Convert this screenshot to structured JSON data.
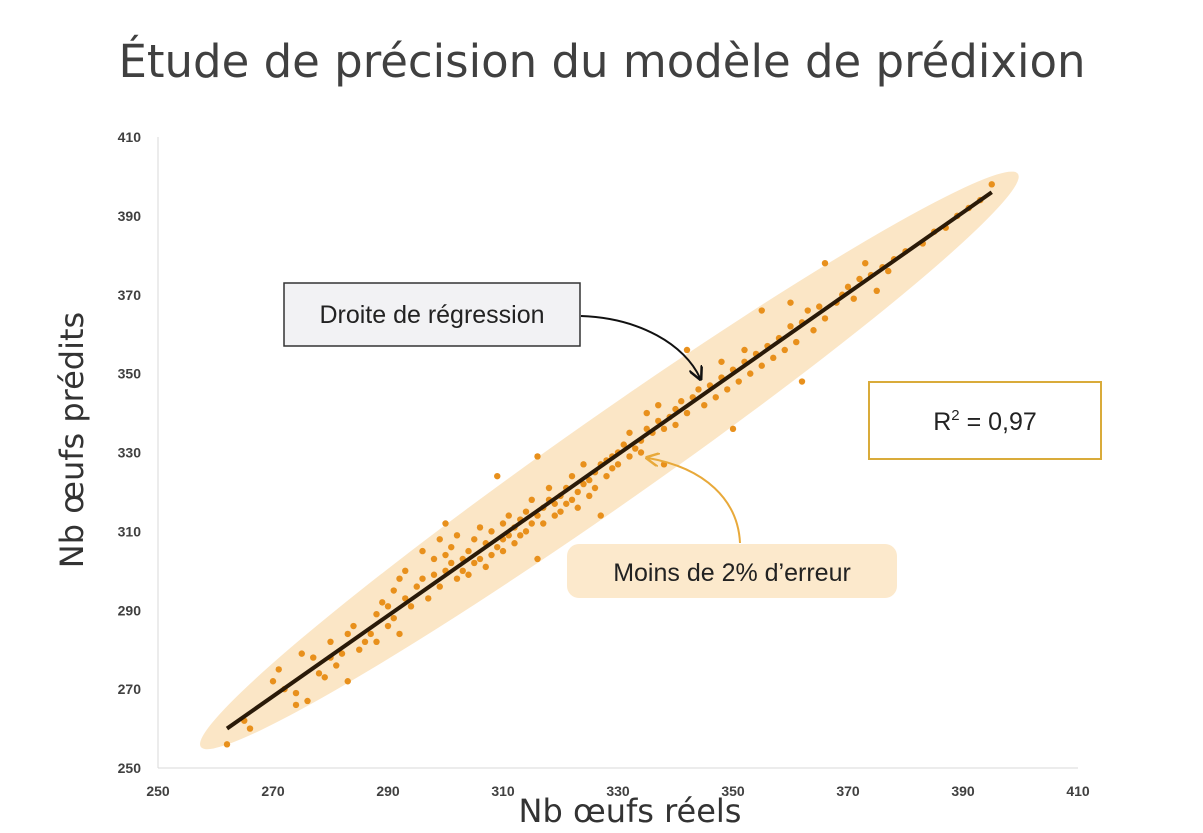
{
  "colors": {
    "point": "#e8901c",
    "band": "#fbe6c6",
    "regression_line": "#2a1a08",
    "callout_arrow": "#e8a93a",
    "r2_border": "#d9ab3a",
    "axis_text": "#404040"
  },
  "chart_data": {
    "type": "scatter",
    "title": "Étude de précision du modèle de prédixion",
    "xlabel": "Nb œufs réels",
    "ylabel": "Nb œufs prédits",
    "xlim": [
      250,
      410
    ],
    "ylim": [
      250,
      410
    ],
    "xticks": [
      250,
      270,
      290,
      310,
      330,
      350,
      370,
      390,
      410
    ],
    "yticks": [
      250,
      270,
      290,
      310,
      330,
      350,
      370,
      390,
      410
    ],
    "grid": false,
    "regression_line": {
      "x": [
        262,
        395
      ],
      "y": [
        260,
        396
      ]
    },
    "annotations": {
      "regression": "Droite de régression",
      "r2_label": "R",
      "r2_sup": "2",
      "r2_value": " = 0,97",
      "error": "Moins de 2% d’erreur"
    },
    "points": [
      [
        262,
        256
      ],
      [
        265,
        262
      ],
      [
        266,
        260
      ],
      [
        270,
        272
      ],
      [
        271,
        275
      ],
      [
        272,
        270
      ],
      [
        274,
        266
      ],
      [
        274,
        269
      ],
      [
        275,
        279
      ],
      [
        276,
        267
      ],
      [
        277,
        278
      ],
      [
        278,
        274
      ],
      [
        279,
        273
      ],
      [
        280,
        278
      ],
      [
        280,
        282
      ],
      [
        281,
        276
      ],
      [
        282,
        279
      ],
      [
        283,
        284
      ],
      [
        283,
        272
      ],
      [
        284,
        286
      ],
      [
        285,
        280
      ],
      [
        286,
        282
      ],
      [
        287,
        284
      ],
      [
        288,
        289
      ],
      [
        288,
        282
      ],
      [
        289,
        292
      ],
      [
        290,
        286
      ],
      [
        290,
        291
      ],
      [
        291,
        295
      ],
      [
        291,
        288
      ],
      [
        292,
        298
      ],
      [
        292,
        284
      ],
      [
        293,
        300
      ],
      [
        293,
        293
      ],
      [
        294,
        291
      ],
      [
        295,
        296
      ],
      [
        296,
        298
      ],
      [
        296,
        305
      ],
      [
        297,
        293
      ],
      [
        298,
        299
      ],
      [
        298,
        303
      ],
      [
        299,
        296
      ],
      [
        299,
        308
      ],
      [
        300,
        300
      ],
      [
        300,
        312
      ],
      [
        300,
        304
      ],
      [
        301,
        302
      ],
      [
        301,
        306
      ],
      [
        302,
        298
      ],
      [
        302,
        309
      ],
      [
        303,
        303
      ],
      [
        303,
        300
      ],
      [
        304,
        305
      ],
      [
        304,
        299
      ],
      [
        305,
        302
      ],
      [
        305,
        308
      ],
      [
        306,
        303
      ],
      [
        306,
        311
      ],
      [
        307,
        307
      ],
      [
        307,
        301
      ],
      [
        308,
        304
      ],
      [
        308,
        310
      ],
      [
        309,
        306
      ],
      [
        309,
        324
      ],
      [
        310,
        308
      ],
      [
        310,
        312
      ],
      [
        310,
        305
      ],
      [
        311,
        309
      ],
      [
        311,
        314
      ],
      [
        312,
        307
      ],
      [
        312,
        311
      ],
      [
        313,
        313
      ],
      [
        313,
        309
      ],
      [
        314,
        315
      ],
      [
        314,
        310
      ],
      [
        315,
        312
      ],
      [
        315,
        318
      ],
      [
        316,
        314
      ],
      [
        316,
        303
      ],
      [
        316,
        329
      ],
      [
        317,
        316
      ],
      [
        317,
        312
      ],
      [
        318,
        318
      ],
      [
        318,
        321
      ],
      [
        319,
        314
      ],
      [
        319,
        317
      ],
      [
        320,
        319
      ],
      [
        320,
        315
      ],
      [
        321,
        321
      ],
      [
        321,
        317
      ],
      [
        322,
        318
      ],
      [
        322,
        324
      ],
      [
        323,
        320
      ],
      [
        323,
        316
      ],
      [
        324,
        322
      ],
      [
        324,
        327
      ],
      [
        325,
        323
      ],
      [
        325,
        319
      ],
      [
        326,
        325
      ],
      [
        326,
        321
      ],
      [
        327,
        327
      ],
      [
        327,
        314
      ],
      [
        328,
        328
      ],
      [
        328,
        324
      ],
      [
        329,
        329
      ],
      [
        329,
        326
      ],
      [
        330,
        330
      ],
      [
        330,
        327
      ],
      [
        331,
        332
      ],
      [
        332,
        329
      ],
      [
        332,
        335
      ],
      [
        333,
        331
      ],
      [
        334,
        333
      ],
      [
        334,
        330
      ],
      [
        335,
        336
      ],
      [
        335,
        340
      ],
      [
        336,
        335
      ],
      [
        337,
        338
      ],
      [
        337,
        342
      ],
      [
        338,
        336
      ],
      [
        338,
        327
      ],
      [
        339,
        339
      ],
      [
        340,
        341
      ],
      [
        340,
        337
      ],
      [
        341,
        343
      ],
      [
        342,
        356
      ],
      [
        342,
        340
      ],
      [
        343,
        344
      ],
      [
        344,
        346
      ],
      [
        345,
        342
      ],
      [
        346,
        347
      ],
      [
        347,
        344
      ],
      [
        348,
        349
      ],
      [
        348,
        353
      ],
      [
        349,
        346
      ],
      [
        350,
        351
      ],
      [
        350,
        336
      ],
      [
        351,
        348
      ],
      [
        352,
        353
      ],
      [
        352,
        356
      ],
      [
        353,
        350
      ],
      [
        354,
        355
      ],
      [
        355,
        352
      ],
      [
        355,
        366
      ],
      [
        356,
        357
      ],
      [
        357,
        354
      ],
      [
        358,
        359
      ],
      [
        359,
        356
      ],
      [
        360,
        362
      ],
      [
        360,
        368
      ],
      [
        361,
        358
      ],
      [
        362,
        348
      ],
      [
        362,
        363
      ],
      [
        363,
        366
      ],
      [
        364,
        361
      ],
      [
        365,
        367
      ],
      [
        366,
        378
      ],
      [
        366,
        364
      ],
      [
        368,
        368
      ],
      [
        369,
        370
      ],
      [
        370,
        372
      ],
      [
        371,
        369
      ],
      [
        372,
        374
      ],
      [
        373,
        378
      ],
      [
        374,
        375
      ],
      [
        375,
        371
      ],
      [
        376,
        377
      ],
      [
        377,
        376
      ],
      [
        378,
        379
      ],
      [
        380,
        381
      ],
      [
        383,
        383
      ],
      [
        385,
        386
      ],
      [
        387,
        387
      ],
      [
        389,
        390
      ],
      [
        391,
        392
      ],
      [
        393,
        394
      ],
      [
        395,
        398
      ]
    ]
  }
}
